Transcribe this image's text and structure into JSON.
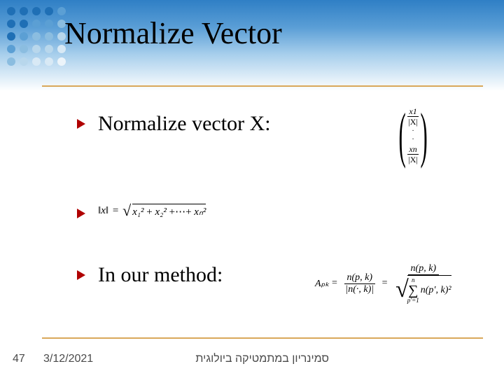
{
  "slide": {
    "title": "Normalize Vector",
    "page_number": "47",
    "date": "3/12/2021",
    "footer_text": "סמינריון במתמטיקה ביולוגית"
  },
  "header": {
    "gradient_top": "#2f7fc5",
    "gradient_bottom": "#ffffff",
    "rule_color": "#d9a85a"
  },
  "dot_colors": {
    "rows": [
      [
        "#1f6fb5",
        "#1f6fb5",
        "#1f6fb5",
        "#1f6fb5",
        "#5b9fd4"
      ],
      [
        "#1f6fb5",
        "#1f6fb5",
        "#5b9fd4",
        "#5b9fd4",
        "#8bbde0"
      ],
      [
        "#1f6fb5",
        "#5b9fd4",
        "#8bbde0",
        "#8bbde0",
        "#b8d7ec"
      ],
      [
        "#5b9fd4",
        "#8bbde0",
        "#b8d7ec",
        "#b8d7ec",
        "#d8e9f5"
      ],
      [
        "#8bbde0",
        "#b8d7ec",
        "#d8e9f5",
        "#d8e9f5",
        "#ecf4fa"
      ]
    ]
  },
  "bullets": {
    "arrow_color": "#b00000",
    "items": [
      {
        "text": "Normalize vector X:"
      },
      {
        "text": ""
      },
      {
        "text": "In our method:"
      }
    ]
  },
  "formulas": {
    "vector": {
      "top_num": "x1",
      "top_den": "|X|",
      "bot_num": "xn",
      "bot_den": "|X|"
    },
    "norm": {
      "lhs": "‖x‖",
      "rhs_terms": [
        "x₁²",
        "x₂²",
        "xₙ²"
      ],
      "separator": "+⋯+"
    },
    "method": {
      "lhs": "Aₚₖ",
      "num1": "n(p, k)",
      "den1": "|n(·, k)|",
      "num2": "n(p, k)",
      "sum_top": "n",
      "sum_bottom": "p'=1",
      "sum_body": "n(p′, k)²"
    }
  }
}
